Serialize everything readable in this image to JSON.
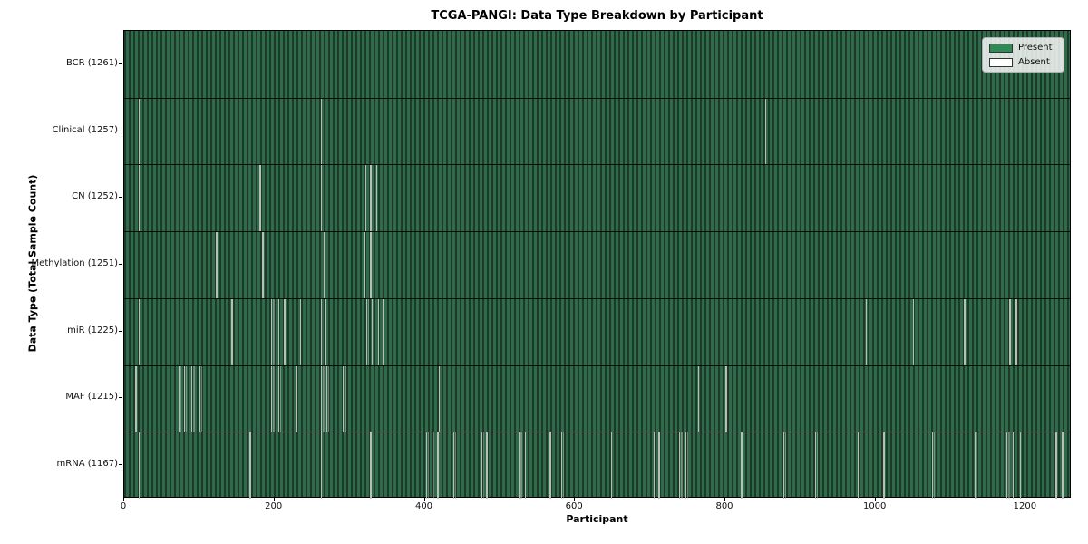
{
  "chart_data": {
    "type": "heatmap",
    "title": "TCGA-PANGI: Data Type Breakdown by Participant",
    "xlabel": "Participant",
    "ylabel": "Data Type (Total Sample Count)",
    "x_ticks": [
      0,
      200,
      400,
      600,
      800,
      1000,
      1200
    ],
    "x_range": [
      0,
      1261
    ],
    "total_participants": 1261,
    "grid": false,
    "legend": {
      "position": "upper right",
      "entries": [
        {
          "label": "Present",
          "color": "#2e8b57"
        },
        {
          "label": "Absent",
          "color": "#ffffff"
        }
      ]
    },
    "colors": {
      "present_fill": "#2e8b57",
      "present_shade_dark": "#1d3a28",
      "present_shade_light": "#2f6b4a",
      "absent_fill": "#ffffff",
      "absent_render": "#b7bfb7",
      "cell_edge": "#000000"
    },
    "rows": [
      {
        "label": "BCR (1261)",
        "data_type": "BCR",
        "present_count": 1261,
        "absent_count": 0,
        "absent_segments": []
      },
      {
        "label": "Clinical (1257)",
        "data_type": "Clinical",
        "present_count": 1257,
        "absent_count": 4,
        "absent_segments": [
          [
            19,
            1
          ],
          [
            262,
            2
          ],
          [
            855,
            1
          ]
        ]
      },
      {
        "label": "CN (1252)",
        "data_type": "CN",
        "present_count": 1252,
        "absent_count": 9,
        "absent_segments": [
          [
            19,
            1
          ],
          [
            180,
            2
          ],
          [
            262,
            2
          ],
          [
            321,
            1
          ],
          [
            328,
            2
          ],
          [
            336,
            1
          ]
        ]
      },
      {
        "label": "Methylation (1251)",
        "data_type": "Methylation",
        "present_count": 1251,
        "absent_count": 10,
        "absent_segments": [
          [
            122,
            2
          ],
          [
            184,
            2
          ],
          [
            266,
            2
          ],
          [
            320,
            2
          ],
          [
            328,
            2
          ]
        ]
      },
      {
        "label": "miR (1225)",
        "data_type": "miR",
        "present_count": 1225,
        "absent_count": 36,
        "absent_segments": [
          [
            19,
            1
          ],
          [
            143,
            2
          ],
          [
            196,
            5
          ],
          [
            205,
            3
          ],
          [
            213,
            2
          ],
          [
            234,
            2
          ],
          [
            262,
            2
          ],
          [
            268,
            1
          ],
          [
            323,
            4
          ],
          [
            330,
            3
          ],
          [
            338,
            3
          ],
          [
            345,
            2
          ],
          [
            989,
            1
          ],
          [
            1052,
            1
          ],
          [
            1120,
            1
          ],
          [
            1180,
            2
          ],
          [
            1189,
            1
          ]
        ]
      },
      {
        "label": "MAF (1215)",
        "data_type": "MAF",
        "present_count": 1215,
        "absent_count": 46,
        "absent_segments": [
          [
            15,
            2
          ],
          [
            73,
            3
          ],
          [
            80,
            4
          ],
          [
            90,
            5
          ],
          [
            100,
            4
          ],
          [
            196,
            6
          ],
          [
            205,
            4
          ],
          [
            229,
            2
          ],
          [
            262,
            5
          ],
          [
            270,
            3
          ],
          [
            291,
            5
          ],
          [
            419,
            1
          ],
          [
            765,
            1
          ],
          [
            802,
            1
          ]
        ]
      },
      {
        "label": "mRNA (1167)",
        "data_type": "mRNA",
        "present_count": 1167,
        "absent_count": 94,
        "absent_segments": [
          [
            19,
            1
          ],
          [
            167,
            2
          ],
          [
            262,
            2
          ],
          [
            328,
            2
          ],
          [
            402,
            4
          ],
          [
            410,
            3
          ],
          [
            417,
            2
          ],
          [
            439,
            3
          ],
          [
            476,
            4
          ],
          [
            483,
            2
          ],
          [
            526,
            5
          ],
          [
            534,
            3
          ],
          [
            567,
            2
          ],
          [
            583,
            3
          ],
          [
            649,
            2
          ],
          [
            706,
            4
          ],
          [
            712,
            2
          ],
          [
            740,
            5
          ],
          [
            748,
            4
          ],
          [
            822,
            2
          ],
          [
            879,
            3
          ],
          [
            921,
            4
          ],
          [
            978,
            4
          ],
          [
            1012,
            2
          ],
          [
            1077,
            4
          ],
          [
            1134,
            4
          ],
          [
            1176,
            5
          ],
          [
            1185,
            4
          ],
          [
            1194,
            3
          ],
          [
            1242,
            2
          ],
          [
            1250,
            2
          ]
        ]
      }
    ]
  }
}
